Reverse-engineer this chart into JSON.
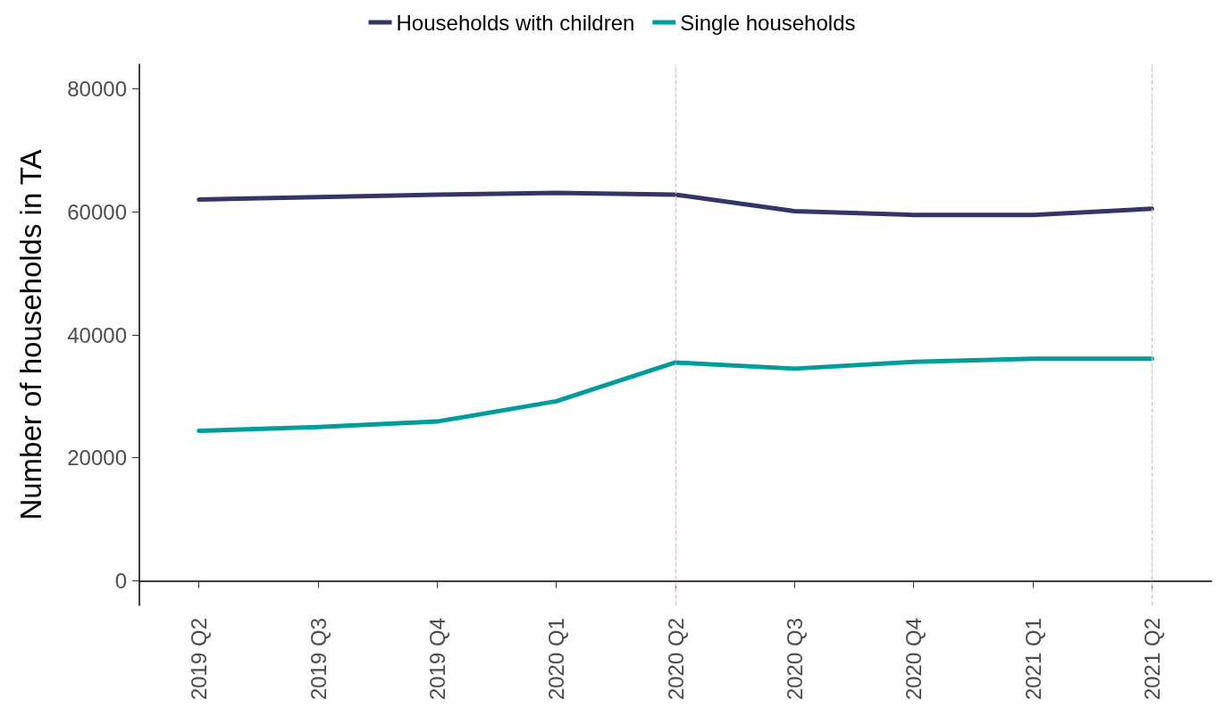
{
  "chart_data": {
    "type": "line",
    "ylabel": "Number of households in TA",
    "categories": [
      "2019 Q2",
      "2019 Q3",
      "2019 Q4",
      "2020 Q1",
      "2020 Q2",
      "2020 Q3",
      "2020 Q4",
      "2021 Q1",
      "2021 Q2"
    ],
    "series": [
      {
        "name": "Households with children",
        "color": "#353466",
        "values": [
          62000,
          62400,
          62800,
          63100,
          62800,
          60100,
          59500,
          59500,
          60500
        ]
      },
      {
        "name": "Single households",
        "color": "#009b9b",
        "values": [
          24400,
          25000,
          25900,
          29200,
          35500,
          34500,
          35600,
          36100,
          36100
        ]
      }
    ],
    "ylim": [
      -4000,
      84000
    ],
    "yticks": [
      0,
      20000,
      40000,
      60000,
      80000
    ],
    "ref_lines": [
      {
        "axis": "x",
        "value": "2020 Q2",
        "color": "#dcbcc4",
        "line_style": "dashed"
      },
      {
        "axis": "x",
        "value": "2021 Q2",
        "color": "#dcbcc4",
        "line_style": "dashed"
      }
    ],
    "grid": false,
    "legend": "top",
    "marker": "none",
    "line_style": "solid"
  }
}
